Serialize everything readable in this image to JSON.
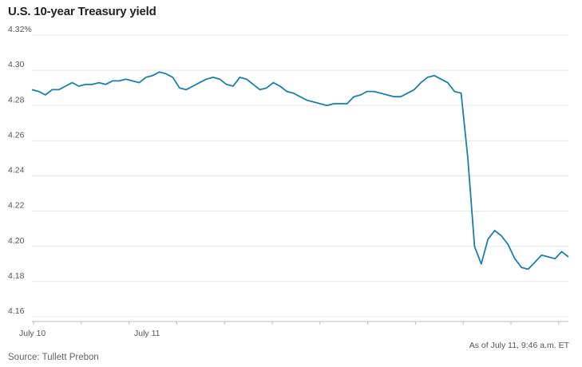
{
  "chart_data": {
    "type": "line",
    "title": "U.S. 10-year Treasury yield",
    "ylim": [
      4.16,
      4.32
    ],
    "yticks": [
      4.16,
      4.18,
      4.2,
      4.22,
      4.24,
      4.26,
      4.28,
      4.3,
      4.32
    ],
    "ytick_labels": [
      "4.16",
      "4.18",
      "4.20",
      "4.22",
      "4.24",
      "4.26",
      "4.28",
      "4.30",
      "4.32%"
    ],
    "xtick_labels": [
      "July 10",
      "July 11"
    ],
    "grid": true,
    "color": "#1a7fab",
    "series": [
      {
        "x": [
          0,
          1,
          2,
          3,
          4,
          5,
          6,
          7,
          8,
          9,
          10,
          11,
          12,
          13,
          14,
          15,
          16,
          17,
          18,
          19,
          20,
          21,
          22,
          23,
          24,
          25,
          26,
          27,
          28,
          29,
          30,
          31,
          32,
          33,
          34,
          35,
          36,
          37,
          38,
          39,
          40,
          41,
          42,
          43,
          44,
          45,
          46,
          47,
          48,
          49,
          50,
          51,
          52,
          53,
          54,
          55,
          56,
          57,
          58,
          59,
          60,
          61,
          62,
          63,
          64,
          65,
          66,
          67,
          68,
          69,
          70,
          71,
          72,
          73,
          74,
          75,
          76,
          77,
          78,
          79,
          80
        ],
        "values": [
          4.289,
          4.288,
          4.286,
          4.289,
          4.289,
          4.291,
          4.293,
          4.291,
          4.292,
          4.292,
          4.293,
          4.292,
          4.294,
          4.294,
          4.295,
          4.294,
          4.293,
          4.296,
          4.297,
          4.299,
          4.298,
          4.296,
          4.29,
          4.289,
          4.291,
          4.293,
          4.295,
          4.296,
          4.295,
          4.292,
          4.291,
          4.296,
          4.295,
          4.292,
          4.289,
          4.29,
          4.293,
          4.291,
          4.288,
          4.287,
          4.285,
          4.283,
          4.282,
          4.281,
          4.28,
          4.281,
          4.281,
          4.281,
          4.285,
          4.286,
          4.288,
          4.288,
          4.287,
          4.286,
          4.285,
          4.285,
          4.287,
          4.289,
          4.293,
          4.296,
          4.297,
          4.295,
          4.293,
          4.288,
          4.287,
          4.25,
          4.2,
          4.19,
          4.204,
          4.209,
          4.206,
          4.201,
          4.193,
          4.188,
          4.187,
          4.191,
          4.195,
          4.194,
          4.193,
          4.197,
          4.194
        ]
      }
    ],
    "source": "Source: Tullett Prebon",
    "as_of": "As of July 11, 9:46 a.m. ET"
  }
}
